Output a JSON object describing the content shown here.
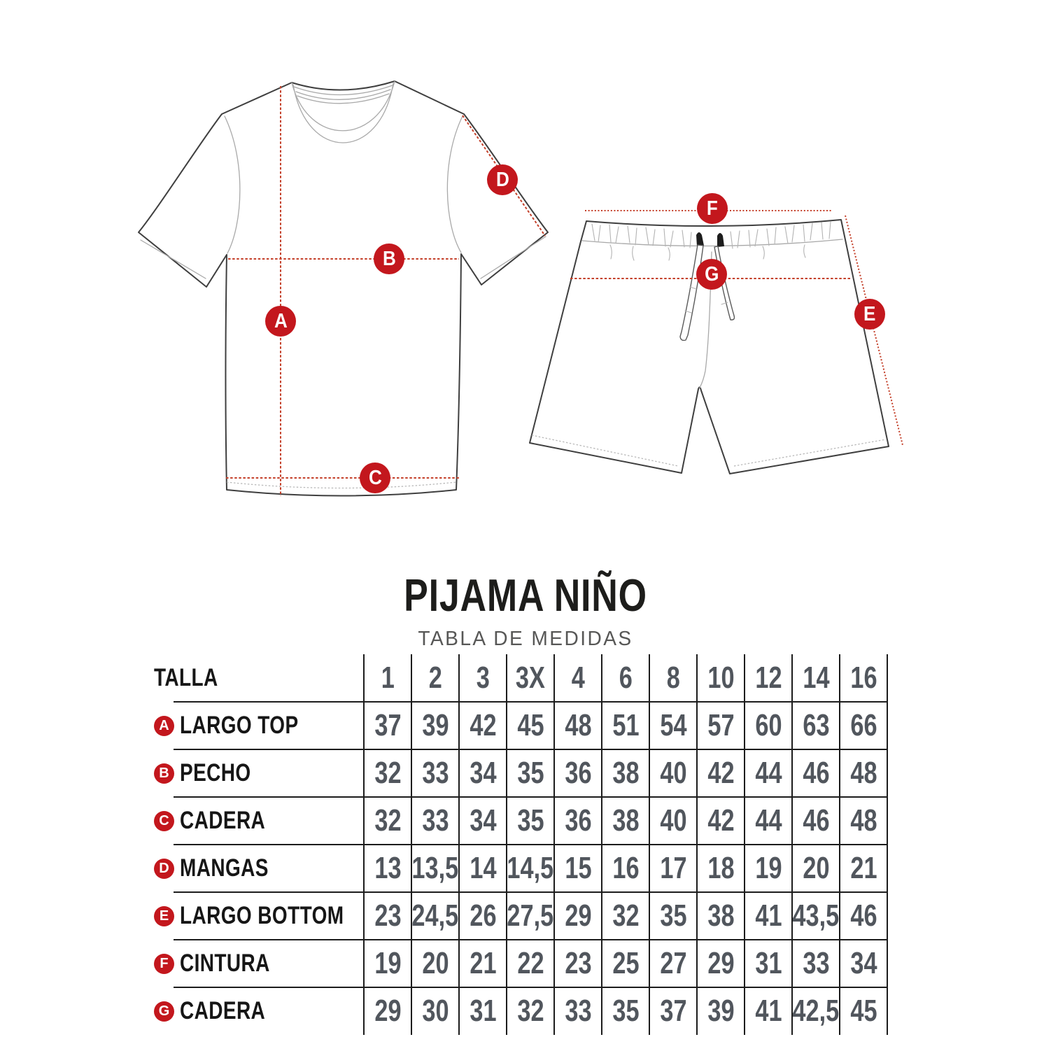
{
  "title": "PIJAMA NIÑO",
  "subtitle": "TABLA DE MEDIDAS",
  "colors": {
    "accent_red": "#c3171d",
    "dash_red": "#c4402a",
    "number_gray": "#51565d",
    "label_black": "#161616",
    "line_black": "#1c1c1c"
  },
  "diagram": {
    "markers": [
      {
        "letter": "A"
      },
      {
        "letter": "B"
      },
      {
        "letter": "C"
      },
      {
        "letter": "D"
      },
      {
        "letter": "E"
      },
      {
        "letter": "F"
      },
      {
        "letter": "G"
      }
    ]
  },
  "table": {
    "size_label": "TALLA",
    "sizes": [
      "1",
      "2",
      "3",
      "3X",
      "4",
      "6",
      "8",
      "10",
      "12",
      "14",
      "16"
    ],
    "rows": [
      {
        "letter": "A",
        "label": "LARGO TOP",
        "values": [
          "37",
          "39",
          "42",
          "45",
          "48",
          "51",
          "54",
          "57",
          "60",
          "63",
          "66"
        ]
      },
      {
        "letter": "B",
        "label": "PECHO",
        "values": [
          "32",
          "33",
          "34",
          "35",
          "36",
          "38",
          "40",
          "42",
          "44",
          "46",
          "48"
        ]
      },
      {
        "letter": "C",
        "label": "CADERA",
        "values": [
          "32",
          "33",
          "34",
          "35",
          "36",
          "38",
          "40",
          "42",
          "44",
          "46",
          "48"
        ]
      },
      {
        "letter": "D",
        "label": "MANGAS",
        "values": [
          "13",
          "13,5",
          "14",
          "14,5",
          "15",
          "16",
          "17",
          "18",
          "19",
          "20",
          "21"
        ]
      },
      {
        "letter": "E",
        "label": "LARGO BOTTOM",
        "values": [
          "23",
          "24,5",
          "26",
          "27,5",
          "29",
          "32",
          "35",
          "38",
          "41",
          "43,5",
          "46"
        ]
      },
      {
        "letter": "F",
        "label": "CINTURA",
        "values": [
          "19",
          "20",
          "21",
          "22",
          "23",
          "25",
          "27",
          "29",
          "31",
          "33",
          "34"
        ]
      },
      {
        "letter": "G",
        "label": "CADERA",
        "values": [
          "29",
          "30",
          "31",
          "32",
          "33",
          "35",
          "37",
          "39",
          "41",
          "42,5",
          "45"
        ]
      }
    ]
  }
}
